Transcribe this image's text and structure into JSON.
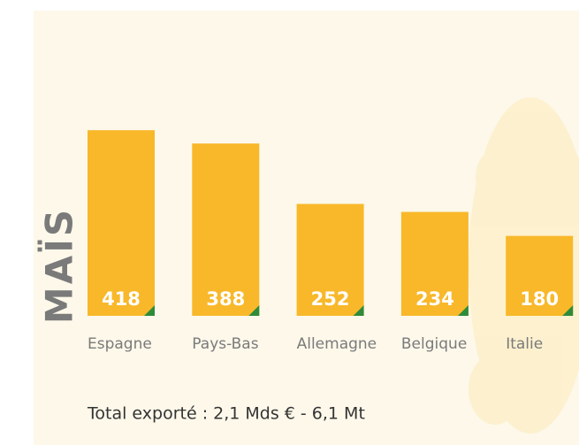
{
  "chart_data": {
    "type": "bar",
    "title": "MAÏS",
    "categories": [
      "Espagne",
      "Pays-Bas",
      "Allemagne",
      "Belgique",
      "Italie"
    ],
    "values": [
      418,
      388,
      252,
      234,
      180
    ],
    "color": "#f8b82a",
    "annotation": "Total exporté : 2,1 Mds € - 6,1 Mt"
  }
}
